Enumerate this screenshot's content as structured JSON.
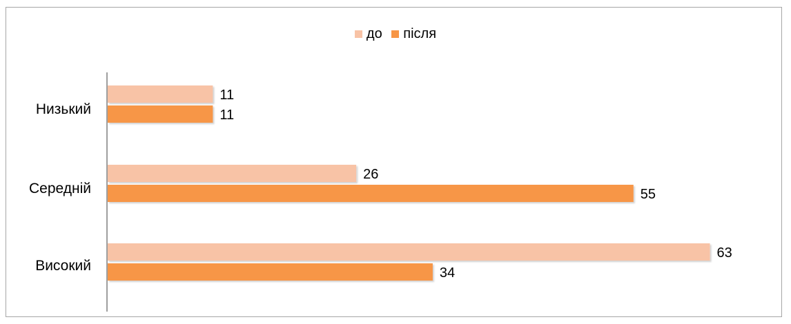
{
  "chart_data": {
    "type": "bar",
    "orientation": "horizontal",
    "title": "",
    "xlabel": "",
    "ylabel": "",
    "categories": [
      "Низький",
      "Середній",
      "Високий"
    ],
    "series": [
      {
        "name": "до",
        "values": [
          11,
          26,
          63
        ],
        "color": "#f8c3a6"
      },
      {
        "name": "після",
        "values": [
          11,
          55,
          34
        ],
        "color": "#f79646"
      }
    ],
    "xlim": [
      0,
      70
    ],
    "grid": false,
    "legend_position": "top"
  }
}
